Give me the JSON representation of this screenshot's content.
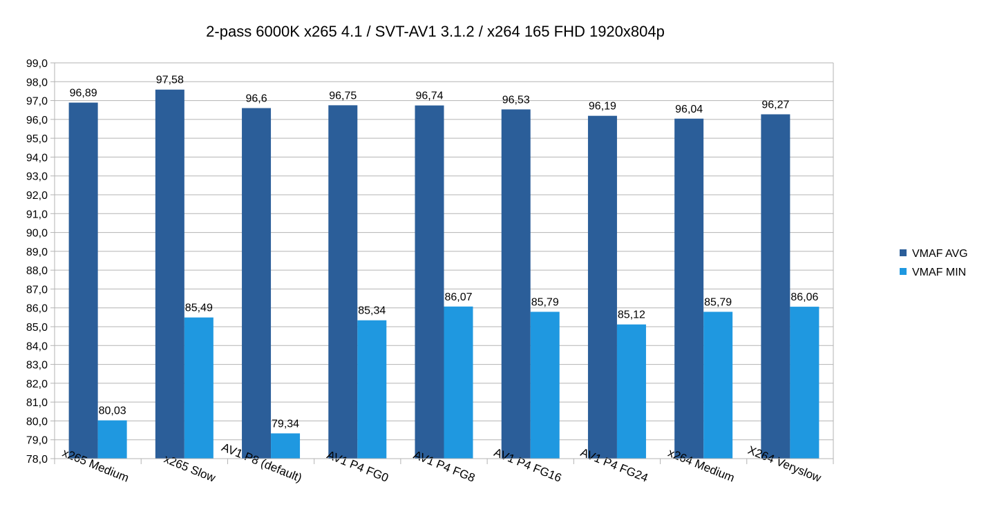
{
  "chart_data": {
    "type": "bar",
    "title": "2-pass 6000K x265 4.1 / SVT-AV1 3.1.2 / x264 165 FHD 1920x804p",
    "xlabel": "",
    "ylabel": "",
    "ylim": [
      78.0,
      99.0
    ],
    "ytick_step": 1.0,
    "grid": true,
    "legend_position": "right",
    "categories": [
      "x265 Medium",
      "x265 Slow",
      "AV1 P8 (default)",
      "AV1 P4 FG0",
      "AV1 P4 FG8",
      "AV1 P4 FG16",
      "AV1 P4 FG24",
      "x264 Medium",
      "X264 Veryslow"
    ],
    "series": [
      {
        "name": "VMAF AVG",
        "color": "#2b5e99",
        "values": [
          96.89,
          97.58,
          96.6,
          96.75,
          96.74,
          96.53,
          96.19,
          96.04,
          96.27
        ],
        "labels": [
          "96,89",
          "97,58",
          "96,6",
          "96,75",
          "96,74",
          "96,53",
          "96,19",
          "96,04",
          "96,27"
        ]
      },
      {
        "name": "VMAF MIN",
        "color": "#1f98e0",
        "values": [
          80.03,
          85.49,
          79.34,
          85.34,
          86.07,
          85.79,
          85.12,
          85.79,
          86.06
        ],
        "labels": [
          "80,03",
          "85,49",
          "79,34",
          "85,34",
          "86,07",
          "85,79",
          "85,12",
          "85,79",
          "86,06"
        ]
      }
    ],
    "yticks": [
      "78,0",
      "79,0",
      "80,0",
      "81,0",
      "82,0",
      "83,0",
      "84,0",
      "85,0",
      "86,0",
      "87,0",
      "88,0",
      "89,0",
      "90,0",
      "91,0",
      "92,0",
      "93,0",
      "94,0",
      "95,0",
      "96,0",
      "97,0",
      "98,0",
      "99,0"
    ]
  }
}
